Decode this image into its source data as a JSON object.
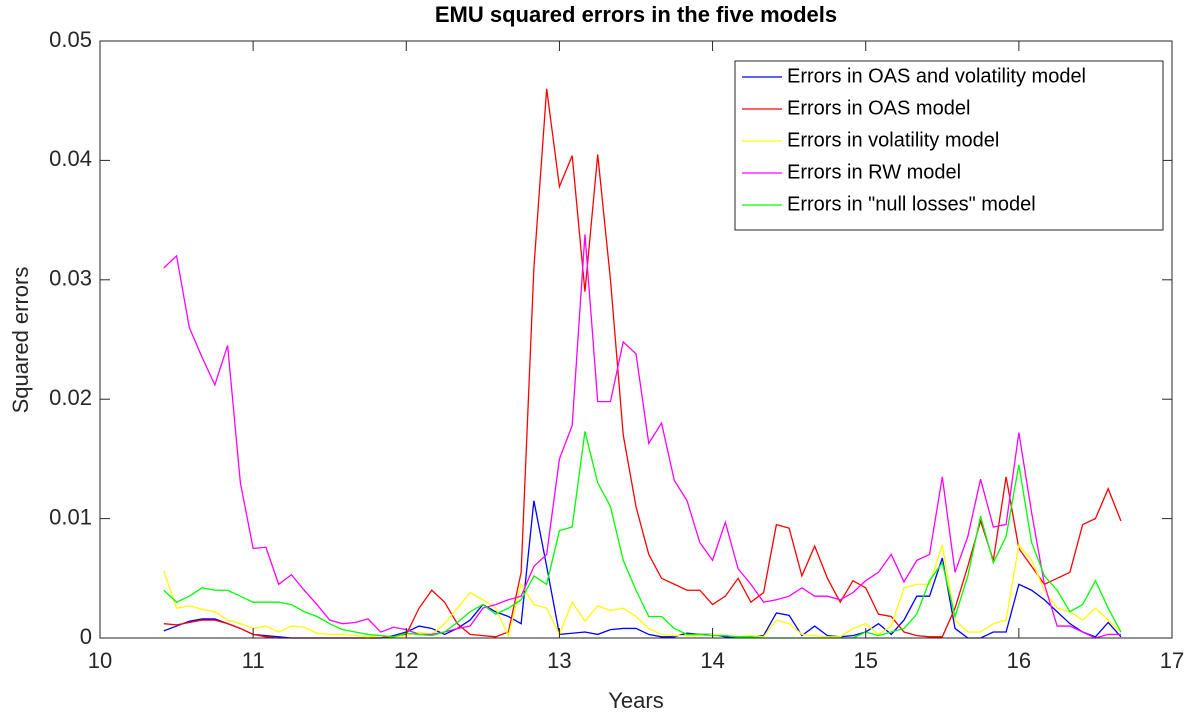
{
  "chart_data": {
    "type": "line",
    "title": "EMU squared errors in the five models",
    "xlabel": "Years",
    "ylabel": "Squared errors",
    "x": [
      10.4167,
      10.5,
      10.5833,
      10.6667,
      10.75,
      10.8333,
      10.9167,
      11,
      11.0833,
      11.1667,
      11.25,
      11.3333,
      11.4167,
      11.5,
      11.5833,
      11.6667,
      11.75,
      11.8333,
      11.9167,
      12,
      12.0833,
      12.1667,
      12.25,
      12.3333,
      12.4167,
      12.5,
      12.5833,
      12.6667,
      12.75,
      12.8333,
      12.9167,
      13,
      13.0833,
      13.1667,
      13.25,
      13.3333,
      13.4167,
      13.5,
      13.5833,
      13.6667,
      13.75,
      13.8333,
      13.9167,
      14,
      14.0833,
      14.1667,
      14.25,
      14.3333,
      14.4167,
      14.5,
      14.5833,
      14.6667,
      14.75,
      14.8333,
      14.9167,
      15,
      15.0833,
      15.1667,
      15.25,
      15.3333,
      15.4167,
      15.5,
      15.5833,
      15.6667,
      15.75,
      15.8333,
      15.9167,
      16,
      16.0833,
      16.1667,
      16.25,
      16.3333,
      16.4167,
      16.5,
      16.5833,
      16.6667
    ],
    "series": [
      {
        "name": "Errors in OAS and volatility model",
        "color": "#0000ff",
        "values": [
          0.0006,
          0.001,
          0.0014,
          0.0016,
          0.0016,
          0.0012,
          0.0008,
          0.0003,
          0.0002,
          0.0001,
          0,
          0,
          0,
          0,
          0,
          0,
          0,
          0,
          0.0002,
          0.0005,
          0.001,
          0.0008,
          0.0003,
          0.0008,
          0.0015,
          0.0028,
          0.0022,
          0.0018,
          0.0012,
          0.0115,
          0.006,
          0.0003,
          0.0004,
          0.0005,
          0.0003,
          0.0007,
          0.0008,
          0.0008,
          0.0003,
          0.0001,
          0.0001,
          0.0004,
          0.0003,
          0.0003,
          0.0001,
          0.0001,
          0.0001,
          0.0002,
          0.0021,
          0.0019,
          0.0002,
          0.001,
          0.0002,
          0.0001,
          0.0002,
          0.0005,
          0.0012,
          0.0003,
          0.0015,
          0.0035,
          0.0035,
          0.0067,
          0.0008,
          0,
          0,
          0.0005,
          0.0005,
          0.0045,
          0.004,
          0.0032,
          0.0022,
          0.0012,
          0.0005,
          0.0001,
          0.0013,
          0.0001
        ]
      },
      {
        "name": "Errors in OAS model",
        "color": "#ff0000",
        "values": [
          0.0012,
          0.0011,
          0.0013,
          0.0015,
          0.0015,
          0.0012,
          0.0008,
          0.0003,
          0.0001,
          0,
          0,
          0,
          0,
          0,
          0,
          0,
          0,
          0,
          0.0001,
          0.0003,
          0.0025,
          0.004,
          0.003,
          0.0012,
          0.0003,
          0.0002,
          0.0001,
          0.0005,
          0.0055,
          0.031,
          0.046,
          0.0378,
          0.0404,
          0.029,
          0.0405,
          0.03,
          0.017,
          0.011,
          0.007,
          0.005,
          0.0045,
          0.004,
          0.004,
          0.0028,
          0.0035,
          0.005,
          0.003,
          0.0038,
          0.0095,
          0.0092,
          0.0052,
          0.0077,
          0.005,
          0.003,
          0.0048,
          0.0042,
          0.002,
          0.0018,
          0.0005,
          0.0002,
          0.0001,
          0.0001,
          0.0025,
          0.006,
          0.0098,
          0.0065,
          0.0135,
          0.0075,
          0.006,
          0.0045,
          0.005,
          0.0055,
          0.0095,
          0.01,
          0.0125,
          0.0098
        ]
      },
      {
        "name": "Errors in volatility model",
        "color": "#ffff00",
        "values": [
          0.0056,
          0.0025,
          0.0027,
          0.0024,
          0.0022,
          0.0015,
          0.0012,
          0.0008,
          0.001,
          0.0005,
          0.001,
          0.0009,
          0.0004,
          0.0003,
          0.0003,
          0.0002,
          0.0001,
          0.0002,
          0.0001,
          0.0002,
          0.0005,
          0.0003,
          0.0012,
          0.0025,
          0.0038,
          0.0032,
          0.0025,
          0.0002,
          0.0045,
          0.0028,
          0.0025,
          0.0003,
          0.003,
          0.0014,
          0.0027,
          0.0023,
          0.0025,
          0.0018,
          0.0008,
          0.0003,
          0.0002,
          0.0002,
          0.0002,
          0.0003,
          0.0002,
          0.0001,
          0.0002,
          0.0001,
          0.0015,
          0.0012,
          0.0003,
          0.0002,
          0.0001,
          0.0001,
          0.0008,
          0.0012,
          0.0003,
          0.001,
          0.0042,
          0.0045,
          0.0045,
          0.0078,
          0.0015,
          0.0005,
          0.0005,
          0.0012,
          0.0015,
          0.0078,
          0.0065,
          0.004,
          0.0025,
          0.0022,
          0.0015,
          0.0025,
          0.0015,
          0.0005
        ]
      },
      {
        "name": "Errors in RW model",
        "color": "#ff00ff",
        "values": [
          0.031,
          0.032,
          0.026,
          0.0235,
          0.0212,
          0.0245,
          0.013,
          0.0075,
          0.0076,
          0.0045,
          0.0053,
          0.004,
          0.0028,
          0.0015,
          0.0012,
          0.0013,
          0.0016,
          0.0005,
          0.0009,
          0.0007,
          0.0003,
          0.0003,
          0.0005,
          0.0008,
          0.001,
          0.0025,
          0.0028,
          0.0032,
          0.0035,
          0.006,
          0.007,
          0.015,
          0.0178,
          0.0338,
          0.0198,
          0.0198,
          0.0248,
          0.0238,
          0.0163,
          0.018,
          0.0132,
          0.0115,
          0.008,
          0.0065,
          0.0097,
          0.0058,
          0.0045,
          0.003,
          0.0032,
          0.0035,
          0.0042,
          0.0035,
          0.0035,
          0.0032,
          0.0038,
          0.0048,
          0.0055,
          0.007,
          0.0047,
          0.0065,
          0.007,
          0.0135,
          0.0055,
          0.0085,
          0.0133,
          0.0093,
          0.0095,
          0.0172,
          0.0105,
          0.0045,
          0.001,
          0.001,
          0.0005,
          0,
          0.0003,
          0.0003
        ]
      },
      {
        "name": "Errors in \"null losses\" model",
        "color": "#00ff00",
        "values": [
          0.004,
          0.003,
          0.0035,
          0.0042,
          0.004,
          0.004,
          0.0035,
          0.003,
          0.003,
          0.003,
          0.0028,
          0.0022,
          0.0018,
          0.0012,
          0.0007,
          0.0005,
          0.0003,
          0.0002,
          0.0001,
          0.0004,
          0.0003,
          0.0002,
          0.0005,
          0.0013,
          0.0022,
          0.0028,
          0.002,
          0.0025,
          0.0032,
          0.0052,
          0.0045,
          0.009,
          0.0093,
          0.0173,
          0.013,
          0.011,
          0.0065,
          0.004,
          0.0018,
          0.0018,
          0.0008,
          0.0003,
          0.0003,
          0.0002,
          0.0002,
          0.0001,
          0.0001,
          0,
          0,
          0,
          0,
          0,
          0,
          0,
          0,
          0.0005,
          0.0002,
          0.0005,
          0.0008,
          0.002,
          0.0048,
          0.0063,
          0.0018,
          0.0052,
          0.0102,
          0.0063,
          0.0085,
          0.0145,
          0.008,
          0.0052,
          0.004,
          0.0022,
          0.0028,
          0.0048,
          0.0025,
          0.0005
        ]
      }
    ],
    "xlim": [
      10,
      17
    ],
    "xticks": [
      10,
      11,
      12,
      13,
      14,
      15,
      16,
      17
    ],
    "ylim": [
      0,
      0.05
    ],
    "yticks": [
      0,
      0.01,
      0.02,
      0.03,
      0.04,
      0.05
    ],
    "grid": false,
    "legend": "upper right"
  }
}
